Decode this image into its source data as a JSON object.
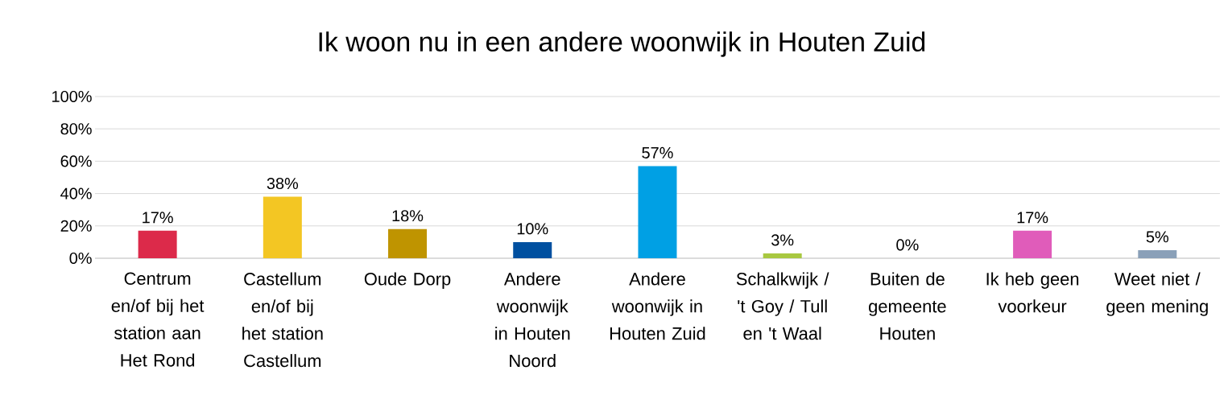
{
  "chart_data": {
    "type": "bar",
    "title": "Ik woon nu in een andere woonwijk in Houten Zuid",
    "categories": [
      "Centrum en/of bij het station aan Het Rond",
      "Castellum en/of bij het station Castellum",
      "Oude Dorp",
      "Andere woonwijk in Houten Noord",
      "Andere woonwijk in Houten Zuid",
      "Schalkwijk / 't Goy / Tull en 't Waal",
      "Buiten de gemeente Houten",
      "Ik heb geen voorkeur",
      "Weet niet / geen mening"
    ],
    "values": [
      17,
      38,
      18,
      10,
      57,
      3,
      0,
      17,
      5
    ],
    "value_labels": [
      "17%",
      "38%",
      "18%",
      "10%",
      "57%",
      "3%",
      "0%",
      "17%",
      "5%"
    ],
    "colors": [
      "#dc2a4a",
      "#f3c623",
      "#bf9400",
      "#0050a0",
      "#00a0e4",
      "#a8c840",
      "#7f7f7f",
      "#e05cba",
      "#8aa0b8"
    ],
    "ylim": [
      0,
      100
    ],
    "yticks": [
      {
        "value": 0,
        "label": "0%"
      },
      {
        "value": 20,
        "label": "20%"
      },
      {
        "value": 40,
        "label": "40%"
      },
      {
        "value": 60,
        "label": "60%"
      },
      {
        "value": 80,
        "label": "80%"
      },
      {
        "value": 100,
        "label": "100%"
      }
    ],
    "grid": "y"
  }
}
